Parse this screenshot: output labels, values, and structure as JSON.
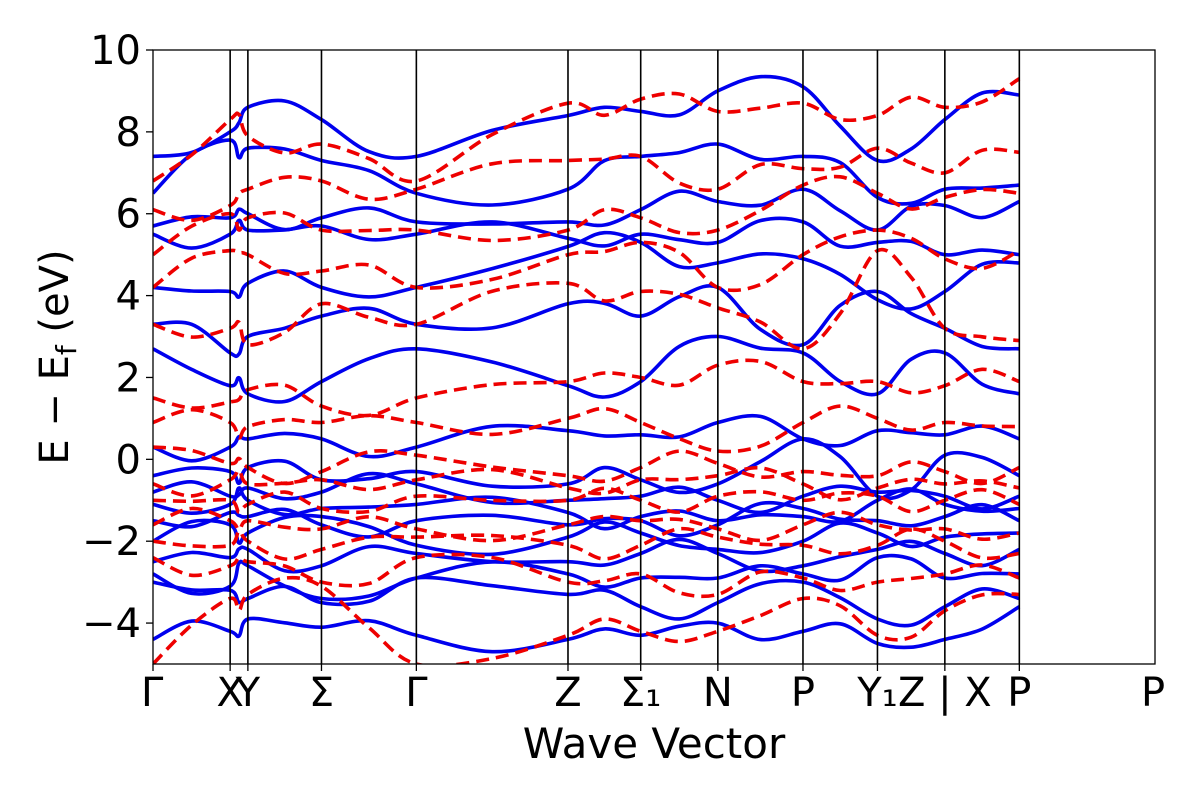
{
  "chart_data": {
    "type": "line",
    "title": "",
    "xlabel": "Wave Vector",
    "ylabel": "E − E_f (eV)",
    "ylabel_main": "E − E",
    "ylabel_sub": "f",
    "ylabel_unit": " (eV)",
    "ylim": [
      -5,
      10
    ],
    "xlim": [
      0,
      11.3
    ],
    "grid": false,
    "legend": "none",
    "yticks": [
      -4,
      -2,
      0,
      2,
      4,
      6,
      8,
      10
    ],
    "ytick_labels": [
      "−4",
      "−2",
      "0",
      "2",
      "4",
      "6",
      "8",
      "10"
    ],
    "kpoints": [
      {
        "label": "Γ",
        "x": 0
      },
      {
        "label": "X",
        "x": 0.87
      },
      {
        "label": "Y",
        "x": 1.07
      },
      {
        "label": "Σ",
        "x": 1.9
      },
      {
        "label": "Γ",
        "x": 2.97
      },
      {
        "label": "Z",
        "x": 4.68
      },
      {
        "label": "Σ₁",
        "x": 5.5
      },
      {
        "label": "N",
        "x": 6.37
      },
      {
        "label": "P",
        "x": 7.33
      },
      {
        "label": "Y₁",
        "x": 8.17
      },
      {
        "label": "Z | X",
        "x": 8.93
      },
      {
        "label": "P",
        "x": 9.77
      }
    ],
    "series": [
      {
        "style": "solid",
        "color": "#0000ee",
        "bands": [
          [
            -4.4,
            -4.2,
            -3.9,
            -4.1,
            -4.3,
            -4.4,
            -4.3,
            -4.0,
            -4.2,
            -4.5,
            -4.4,
            -3.6
          ],
          [
            -3.0,
            -3.2,
            -3.4,
            -3.5,
            -2.9,
            -3.3,
            -3.6,
            -3.5,
            -3.0,
            -3.9,
            -3.6,
            -3.4
          ],
          [
            -2.8,
            -3.1,
            -2.6,
            -3.4,
            -2.9,
            -2.8,
            -2.9,
            -2.9,
            -2.8,
            -2.4,
            -2.9,
            -2.8
          ],
          [
            -2.5,
            -2.4,
            -2.2,
            -2.6,
            -2.3,
            -2.5,
            -2.3,
            -2.3,
            -2.6,
            -2.2,
            -2.3,
            -2.2
          ],
          [
            -2.0,
            -1.6,
            -1.8,
            -1.4,
            -2.1,
            -1.9,
            -1.8,
            -2.2,
            -2.0,
            -1.8,
            -1.9,
            -1.8
          ],
          [
            -1.5,
            -1.3,
            -1.4,
            -1.6,
            -1.5,
            -1.6,
            -1.5,
            -1.6,
            -1.2,
            -1.5,
            -1.4,
            -1.5
          ],
          [
            -1.1,
            -1.1,
            -1.0,
            -1.2,
            -1.1,
            -1.3,
            -1.4,
            -1.5,
            -1.4,
            -1.0,
            -1.1,
            -1.2
          ],
          [
            -0.8,
            -0.9,
            -0.7,
            -0.8,
            -0.6,
            -1.0,
            -0.9,
            -1.0,
            -0.9,
            -0.8,
            -0.9,
            -0.9
          ],
          [
            -0.4,
            -0.3,
            -0.2,
            -0.5,
            -0.3,
            -0.6,
            -0.5,
            -0.6,
            0.5,
            -0.9,
            0.1,
            -0.4
          ],
          [
            0.3,
            0.3,
            0.5,
            0.5,
            0.3,
            0.7,
            0.6,
            0.9,
            0.5,
            0.7,
            0.6,
            0.5
          ],
          [
            2.7,
            1.8,
            1.6,
            1.9,
            2.7,
            1.8,
            1.9,
            3.0,
            2.6,
            1.6,
            2.6,
            1.6
          ],
          [
            3.3,
            2.6,
            3.0,
            3.5,
            3.3,
            3.8,
            3.5,
            4.2,
            2.8,
            4.1,
            3.2,
            2.7
          ],
          [
            4.2,
            4.1,
            4.3,
            4.2,
            4.2,
            5.2,
            5.3,
            4.8,
            4.9,
            3.9,
            4.1,
            4.8
          ],
          [
            5.5,
            5.5,
            5.6,
            5.7,
            5.5,
            5.4,
            5.5,
            5.3,
            5.8,
            5.3,
            5.0,
            5.0
          ],
          [
            5.7,
            5.9,
            6.0,
            5.9,
            5.8,
            5.8,
            6.1,
            6.3,
            6.6,
            5.6,
            6.2,
            6.3
          ],
          [
            6.5,
            7.8,
            7.6,
            7.3,
            6.5,
            6.6,
            7.4,
            7.7,
            7.4,
            6.4,
            6.6,
            6.7
          ],
          [
            7.4,
            8.0,
            8.6,
            8.3,
            7.4,
            8.4,
            8.5,
            9.0,
            9.1,
            7.3,
            8.3,
            8.9
          ]
        ]
      },
      {
        "style": "dashed",
        "color": "#ee0000",
        "bands": [
          [
            -5.0,
            -3.4,
            -3.3,
            -3.1,
            -5.0,
            -4.3,
            -4.2,
            -4.2,
            -3.4,
            -4.3,
            -3.7,
            -3.3
          ],
          [
            -2.4,
            -2.6,
            -2.5,
            -3.0,
            -2.4,
            -3.0,
            -2.8,
            -3.3,
            -2.9,
            -3.0,
            -2.8,
            -2.9
          ],
          [
            -2.0,
            -2.1,
            -2.0,
            -2.2,
            -1.9,
            -2.1,
            -2.1,
            -1.9,
            -2.1,
            -2.1,
            -2.0,
            -2.3
          ],
          [
            -1.6,
            -1.5,
            -1.5,
            -1.7,
            -1.7,
            -1.6,
            -1.5,
            -1.7,
            -1.6,
            -1.6,
            -1.7,
            -1.8
          ],
          [
            -1.0,
            -1.0,
            -1.1,
            -1.2,
            -0.9,
            -1.0,
            -1.0,
            -0.9,
            -1.0,
            -0.9,
            -1.0,
            -1.1
          ],
          [
            -0.6,
            -0.5,
            -0.6,
            -0.5,
            -0.5,
            -0.7,
            -0.5,
            -0.4,
            -0.6,
            -0.7,
            -0.6,
            -0.7
          ],
          [
            0.3,
            -0.1,
            -0.2,
            -0.3,
            0.1,
            -0.4,
            -0.2,
            -0.1,
            -0.3,
            -0.4,
            -0.3,
            -0.2
          ],
          [
            0.9,
            0.9,
            0.8,
            0.9,
            0.9,
            1.0,
            0.9,
            0.2,
            0.9,
            1.0,
            0.9,
            0.8
          ],
          [
            1.5,
            1.4,
            1.7,
            1.3,
            1.5,
            1.9,
            2.0,
            2.3,
            1.9,
            1.9,
            1.8,
            1.9
          ],
          [
            3.3,
            3.2,
            2.8,
            3.8,
            3.3,
            4.3,
            4.1,
            3.7,
            2.7,
            5.1,
            3.2,
            2.9
          ],
          [
            4.2,
            5.1,
            5.0,
            4.6,
            4.2,
            5.0,
            5.3,
            4.2,
            5.0,
            5.6,
            4.9,
            5.1
          ],
          [
            5.0,
            6.0,
            5.9,
            5.6,
            5.6,
            5.6,
            5.9,
            5.6,
            6.7,
            6.5,
            6.4,
            6.5
          ],
          [
            6.1,
            6.2,
            6.6,
            6.8,
            6.6,
            7.3,
            7.4,
            6.6,
            7.1,
            7.6,
            7.0,
            7.5
          ],
          [
            6.8,
            8.3,
            7.9,
            7.7,
            6.8,
            8.7,
            8.8,
            8.5,
            8.7,
            8.4,
            8.6,
            9.3
          ]
        ]
      }
    ]
  }
}
